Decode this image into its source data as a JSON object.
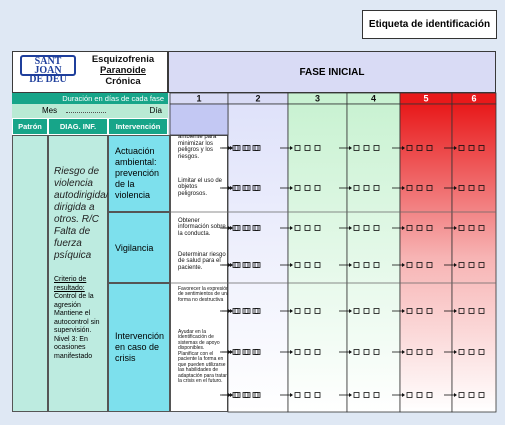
{
  "label_box": "Etiqueta de identificación",
  "header": {
    "logo_line1": "SANT JOAN",
    "logo_line2": "DE DÉU",
    "title": [
      "Esquizofrenia",
      "Paranoide",
      "Crónica"
    ],
    "phase": "FASE INICIAL"
  },
  "duration": {
    "title": "Duración en días de cada fase",
    "month": "Mes",
    "day": "Día"
  },
  "columns": [
    "1",
    "2",
    "3",
    "4",
    "5",
    "6"
  ],
  "table_headers": [
    "Patrón",
    "DIAG. INF.",
    "Intervención"
  ],
  "diagnosis": "Riesgo de violencia autodirigida/ dirigida a otros. R/C Falta de fuerza psíquica",
  "criteria": {
    "title": "Criterio de resultado:",
    "text": "Control de la agresión Mantiene el autocontrol sin supervisión. Nivel 3: En ocasiones manifestado"
  },
  "interventions": [
    {
      "name": "Actuación ambiental: prevención de la violencia",
      "activities": [
        "Modificar el ambiente para minimizar los peligros y los riesgos.",
        "Limitar el uso de objetos peligrosos."
      ]
    },
    {
      "name": "Vigilancia",
      "activities": [
        "Obtener información sobre la conducta.",
        "Determinar riesgo de salud para el paciente."
      ]
    },
    {
      "name": "Intervención en caso de crisis",
      "activities": [
        "Favorecer la expresión de sentimientos de una forma no destructiva",
        "Ayudar en la identificación de sistemas de apoyo disponibles.",
        "Planificar con el paciente la forma en que pueden utilizarse las habilidades de adaptación para tratar la crisis en el futuro."
      ]
    }
  ]
}
